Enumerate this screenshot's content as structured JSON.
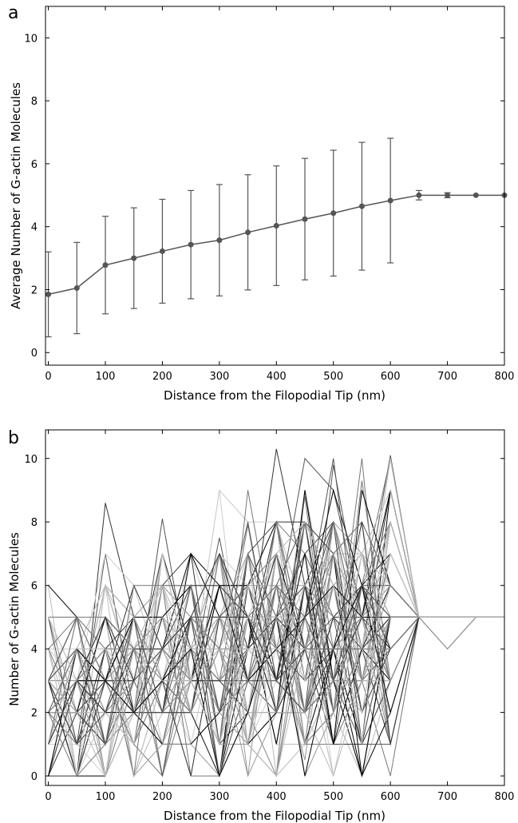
{
  "chart_data": [
    {
      "type": "line",
      "panel_label": "a",
      "xlabel": "Distance from the Filopodial Tip (nm)",
      "ylabel": "Average Number of G-actin Molecules",
      "xlim": [
        -5,
        800
      ],
      "ylim": [
        -0.4,
        11
      ],
      "xticks": [
        0,
        100,
        200,
        300,
        400,
        500,
        600,
        700,
        800
      ],
      "yticks": [
        0,
        2,
        4,
        6,
        8,
        10
      ],
      "line_color": "#555555",
      "series": [
        {
          "x": [
            0,
            50,
            100,
            150,
            200,
            250,
            300,
            350,
            400,
            450,
            500,
            550,
            600,
            650,
            700,
            750,
            800
          ],
          "y": [
            1.85,
            2.05,
            2.78,
            3.0,
            3.22,
            3.43,
            3.57,
            3.82,
            4.03,
            4.24,
            4.43,
            4.65,
            4.83,
            5.0,
            5.0,
            5.0,
            5.0
          ],
          "err": [
            1.35,
            1.45,
            1.55,
            1.6,
            1.65,
            1.72,
            1.77,
            1.83,
            1.9,
            1.93,
            2.0,
            2.03,
            1.98,
            0.15,
            0.08,
            0,
            0
          ]
        }
      ]
    },
    {
      "type": "line",
      "panel_label": "b",
      "xlabel": "Distance from the Filopodial Tip (nm)",
      "ylabel": "Number of G-actin Molecules",
      "xlim": [
        -5,
        800
      ],
      "ylim": [
        -0.3,
        10.9
      ],
      "xticks": [
        0,
        100,
        200,
        300,
        400,
        500,
        600,
        700,
        800
      ],
      "yticks": [
        0,
        2,
        4,
        6,
        8,
        10
      ],
      "x": [
        0,
        50,
        100,
        150,
        200,
        250,
        300,
        350,
        400,
        450,
        500,
        550,
        600,
        650,
        700,
        750,
        800
      ],
      "n_trajectories": 90,
      "trajectories_note_free": true,
      "sample_series": [
        {
          "y": [
            6,
            5,
            3,
            2,
            4,
            3,
            4,
            3,
            5,
            4,
            6,
            5,
            4,
            5,
            5,
            5,
            5
          ]
        },
        {
          "y": [
            0,
            0,
            8.6,
            5,
            3,
            4,
            3,
            4,
            10.3,
            6,
            7,
            8,
            6,
            5,
            5,
            5,
            5
          ]
        },
        {
          "y": [
            3,
            1,
            7,
            2,
            8.1,
            3,
            7.5,
            3,
            6,
            2,
            9.8,
            5,
            10.1,
            5,
            5,
            5,
            5
          ]
        },
        {
          "y": [
            2,
            4,
            1,
            5,
            2,
            6,
            3,
            7.9,
            3,
            8.8,
            2,
            9.3,
            3,
            5,
            4,
            5,
            5
          ]
        },
        {
          "y": [
            5,
            2,
            6,
            3,
            1,
            4,
            2,
            5,
            4,
            0.5,
            7,
            4,
            5,
            5,
            5,
            5,
            5
          ]
        }
      ],
      "line_colors": [
        "#000000",
        "#333333",
        "#555555",
        "#777777",
        "#999999",
        "#bbbbbb",
        "#cccccc"
      ]
    }
  ]
}
